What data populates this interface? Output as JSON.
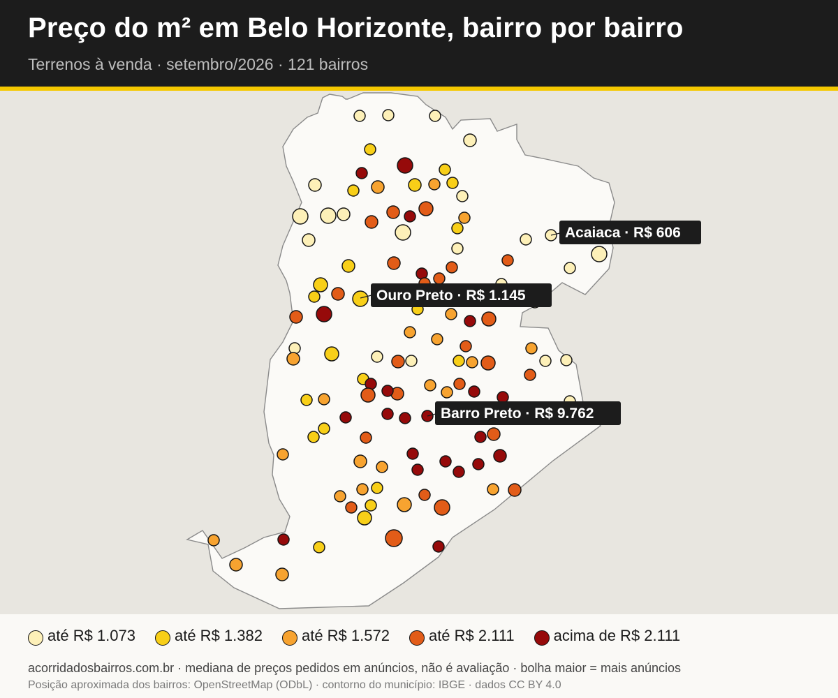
{
  "header": {
    "title": "Preço do m² em Belo Horizonte, bairro por bairro",
    "subtitle": "Terrenos à venda · setembro/2026 · 121 bairros"
  },
  "colors": {
    "header_bg": "#1c1c1c",
    "accent": "#f5c800",
    "land": "#fbfaf7",
    "outside": "#e8e6e0",
    "class_1": "#fdf0b8",
    "class_2": "#f8cf18",
    "class_3": "#f7a330",
    "class_4": "#e25c18",
    "class_5": "#960a0a"
  },
  "legend": [
    {
      "label": "até R$ 1.073",
      "color": "#fdf0b8"
    },
    {
      "label": "até R$ 1.382",
      "color": "#f8cf18"
    },
    {
      "label": "até R$ 1.572",
      "color": "#f7a330"
    },
    {
      "label": "até R$ 2.111",
      "color": "#e25c18"
    },
    {
      "label": "acima de R$ 2.111",
      "color": "#960a0a"
    }
  ],
  "callouts": [
    {
      "bairro": "Acaiaca",
      "text": "Acaiaca · R$ 606"
    },
    {
      "bairro": "Ouro Preto",
      "text": "Ouro Preto · R$ 1.145"
    },
    {
      "bairro": "Barro Preto",
      "text": "Barro Preto · R$ 9.762"
    }
  ],
  "footer": {
    "source": "acorridadosbairros.com.br · mediana de preços pedidos em anúncios, não é avaliação · bolha maior = mais anúncios",
    "attribution": "Posição aproximada dos bairros: OpenStreetMap (ODbL) · contorno do município: IBGE · dados CC BY 4.0"
  }
}
